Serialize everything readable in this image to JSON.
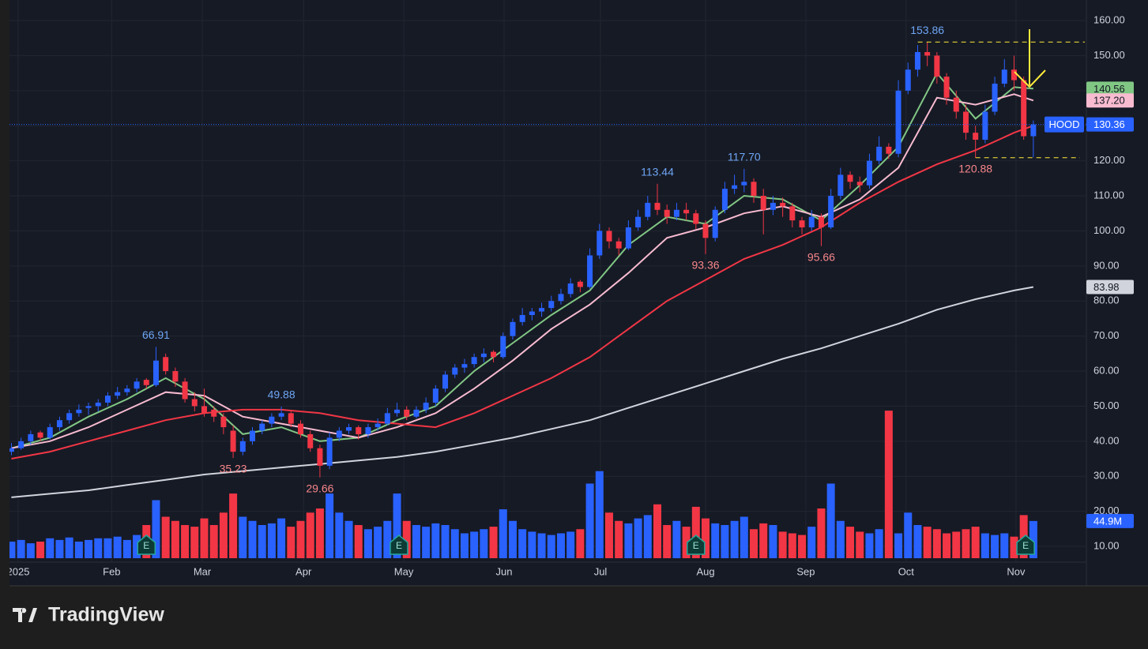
{
  "chart_data": {
    "type": "candlestick",
    "symbol": "HOOD",
    "xlim": [
      -0.2,
      111.5
    ],
    "xticks": [
      {
        "value": 0.7,
        "label": "2025"
      },
      {
        "value": 10.4,
        "label": "Feb"
      },
      {
        "value": 19.8,
        "label": "Mar"
      },
      {
        "value": 30.3,
        "label": "Apr"
      },
      {
        "value": 40.7,
        "label": "May"
      },
      {
        "value": 51.1,
        "label": "Jun"
      },
      {
        "value": 61.1,
        "label": "Jul"
      },
      {
        "value": 72,
        "label": "Aug"
      },
      {
        "value": 82.4,
        "label": "Sep"
      },
      {
        "value": 92.8,
        "label": "Oct"
      },
      {
        "value": 104.2,
        "label": "Nov"
      }
    ],
    "ylim": [
      5.5,
      165.86
    ],
    "yticks": [
      {
        "value": 10,
        "label": "10.00"
      },
      {
        "value": 20,
        "label": "20.00"
      },
      {
        "value": 30,
        "label": "30.00"
      },
      {
        "value": 40,
        "label": "40.00"
      },
      {
        "value": 50,
        "label": "50.00"
      },
      {
        "value": 60,
        "label": "60.00"
      },
      {
        "value": 70,
        "label": "70.00"
      },
      {
        "value": 80,
        "label": "80.00"
      },
      {
        "value": 90,
        "label": "90.00"
      },
      {
        "value": 100,
        "label": "100.00"
      },
      {
        "value": 110,
        "label": "110.00"
      },
      {
        "value": 120,
        "label": "120.00"
      },
      {
        "value": 130,
        "label": "130.00"
      },
      {
        "value": 140,
        "label": "140.00"
      },
      {
        "value": 150,
        "label": "150.00"
      },
      {
        "value": 160,
        "label": "160.00"
      }
    ],
    "grid": true,
    "up_color": "#2962ff",
    "down_color": "#f23645",
    "open": [
      37,
      38,
      40,
      42.5,
      41,
      44,
      46,
      48,
      49.5,
      50,
      51,
      53,
      54,
      55,
      57.5,
      56,
      64,
      60,
      57,
      52,
      50,
      49,
      47,
      43,
      37,
      40,
      43,
      45,
      47,
      48,
      45,
      42,
      38,
      33,
      41,
      43,
      44,
      42,
      44,
      45,
      48,
      49,
      47,
      49,
      51,
      55,
      59,
      61,
      62,
      64,
      65.5,
      64,
      70,
      74,
      76,
      77,
      78,
      80,
      82,
      85.5,
      84,
      93,
      100,
      97,
      95,
      101,
      104,
      108,
      106,
      104,
      106,
      105,
      102,
      98,
      106,
      112,
      113,
      114,
      110,
      106,
      108,
      107,
      103,
      101,
      104,
      101,
      110,
      116,
      114,
      113,
      120,
      124,
      122,
      140,
      146,
      151,
      150,
      144,
      138,
      134,
      128,
      126,
      134,
      142,
      146,
      143,
      127
    ],
    "high": [
      39.5,
      41,
      43,
      43,
      45,
      47,
      49,
      50.5,
      51,
      52,
      54,
      55.5,
      56,
      58,
      58,
      66.91,
      65,
      61,
      58,
      54,
      55,
      50,
      48,
      44.5,
      41,
      44,
      46,
      48,
      49.88,
      48.5,
      46,
      43,
      39,
      42.5,
      44,
      45,
      44.5,
      45,
      46.5,
      49.5,
      51,
      50,
      50,
      52.5,
      56,
      60,
      62,
      63.5,
      65,
      66.5,
      66,
      71,
      75,
      78,
      78,
      79.5,
      81.5,
      83.5,
      86.5,
      86,
      95,
      102,
      101,
      98,
      103,
      106,
      110,
      113.44,
      107.5,
      108,
      108,
      106,
      103,
      107,
      114,
      116,
      117.7,
      115,
      112,
      110,
      109.5,
      108,
      104,
      106,
      105,
      112,
      118,
      117,
      115.5,
      122,
      127,
      125,
      143,
      148,
      153,
      153.86,
      151,
      145,
      140,
      136,
      130,
      136,
      144,
      149,
      150,
      144,
      131.5
    ],
    "low": [
      36,
      37.5,
      39,
      40,
      40.5,
      43,
      45,
      47,
      47.5,
      48.5,
      50,
      52,
      53,
      54,
      55,
      55.5,
      59,
      55.5,
      51,
      48.5,
      47,
      45.5,
      42,
      35.23,
      36,
      39,
      42,
      44,
      46,
      44,
      41,
      37,
      29.66,
      32,
      40,
      42,
      40.5,
      41,
      43,
      44.5,
      47,
      46,
      46.5,
      48,
      50,
      54,
      58,
      59.5,
      61,
      62.5,
      62.5,
      63.5,
      69,
      73,
      74.5,
      75.5,
      77,
      79,
      81,
      82.5,
      83.5,
      92,
      95,
      93,
      94.5,
      100,
      103,
      104.5,
      102,
      103,
      103,
      100.5,
      93.36,
      97,
      105,
      110.5,
      111,
      108,
      99,
      104.5,
      104,
      101,
      99,
      100,
      95.66,
      100.5,
      109,
      112,
      111,
      112,
      119,
      120.5,
      121,
      139,
      144,
      147,
      142,
      136,
      132,
      126,
      120.88,
      125,
      133,
      141,
      140,
      126,
      121
    ],
    "close": [
      38,
      40,
      42,
      41,
      44,
      46,
      48,
      49,
      50,
      51,
      53,
      54,
      55,
      57,
      56,
      63,
      60,
      57,
      52,
      50,
      48,
      47,
      44,
      37,
      40,
      43,
      45,
      47,
      48,
      45,
      42,
      38,
      33,
      41,
      43,
      44,
      42,
      44,
      45,
      48,
      49,
      47,
      49,
      51,
      55,
      59,
      61,
      62,
      64,
      65,
      64,
      70,
      74,
      76,
      77,
      78,
      80,
      82,
      85,
      84,
      93,
      100,
      97,
      95,
      101,
      104,
      108,
      106,
      104,
      106,
      105,
      102,
      98,
      106,
      112,
      113,
      114,
      110,
      106,
      108,
      107,
      103,
      101,
      104,
      101,
      110,
      116,
      114,
      113,
      120,
      124,
      122,
      140,
      146,
      151,
      150,
      144,
      138,
      134,
      128,
      126,
      134,
      142,
      146,
      143,
      127,
      130.36
    ],
    "high_labels": {
      "x": [
        15,
        28,
        67,
        76,
        95
      ],
      "labels": [
        "66.91",
        "49.88",
        "113.44",
        "117.70",
        "153.86"
      ]
    },
    "low_labels": {
      "x": [
        23,
        32,
        72,
        84,
        100
      ],
      "labels": [
        "35.23",
        "29.66",
        "93.36",
        "95.66",
        "120.88"
      ]
    },
    "volume": {
      "values": [
        20,
        22,
        18,
        20,
        24,
        22,
        25,
        20,
        22,
        24,
        24,
        26,
        22,
        28,
        40,
        70,
        50,
        45,
        40,
        38,
        48,
        40,
        55,
        78,
        50,
        45,
        40,
        42,
        48,
        38,
        45,
        55,
        60,
        78,
        55,
        45,
        40,
        35,
        38,
        45,
        78,
        45,
        40,
        38,
        42,
        40,
        35,
        30,
        32,
        35,
        38,
        59,
        45,
        35,
        32,
        30,
        28,
        30,
        32,
        35,
        90,
        105,
        55,
        45,
        42,
        48,
        52,
        65,
        40,
        45,
        38,
        62,
        48,
        42,
        40,
        45,
        50,
        35,
        42,
        40,
        32,
        30,
        28,
        38,
        60,
        90,
        45,
        38,
        32,
        30,
        35,
        178,
        30,
        55,
        40,
        38,
        35,
        30,
        32,
        35,
        38,
        30,
        28,
        30,
        26,
        52,
        44.9
      ],
      "last_label": "44.9M"
    },
    "earnings": {
      "x": [
        14,
        40.2,
        71,
        105.2
      ],
      "label": "E"
    },
    "ma": [
      {
        "color": "#81c784",
        "x": [
          0,
          4,
          8,
          12,
          16,
          20,
          24,
          28,
          32,
          36,
          40,
          44,
          48,
          52,
          56,
          60,
          64,
          68,
          72,
          76,
          80,
          84,
          88,
          92,
          96,
          100,
          104,
          106
        ],
        "values": [
          38,
          41,
          47,
          52,
          58,
          52,
          42,
          44,
          40,
          41,
          46,
          50,
          60,
          68,
          76,
          83,
          96,
          104,
          102,
          110,
          109,
          103,
          113,
          124,
          145,
          132,
          141,
          140.56
        ],
        "tag": true
      },
      {
        "color": "#f8bbd0",
        "x": [
          0,
          4,
          8,
          12,
          16,
          20,
          24,
          28,
          32,
          36,
          40,
          44,
          48,
          52,
          56,
          60,
          64,
          68,
          72,
          76,
          80,
          84,
          88,
          92,
          96,
          100,
          104,
          106
        ],
        "values": [
          38,
          40,
          44,
          49,
          54,
          53,
          47,
          45,
          43,
          41,
          44,
          48,
          55,
          63,
          72,
          79,
          88,
          98,
          101,
          105,
          107,
          104,
          109,
          118,
          138,
          136,
          139,
          137.2
        ],
        "last_label": "137.20",
        "tag": true
      },
      {
        "color": "#f23645",
        "x": [
          0,
          4,
          8,
          12,
          16,
          20,
          24,
          28,
          32,
          36,
          40,
          44,
          48,
          52,
          56,
          60,
          64,
          68,
          72,
          76,
          80,
          84,
          88,
          92,
          96,
          100,
          104,
          106
        ],
        "values": [
          35,
          37,
          40,
          43,
          46,
          48,
          49,
          49,
          48,
          46,
          45,
          44,
          48,
          53,
          58,
          64,
          72,
          80,
          86,
          92,
          96,
          101,
          108,
          114,
          119,
          123,
          128,
          130
        ],
        "tag": false
      },
      {
        "color": "#d1d4dc",
        "x": [
          0,
          4,
          8,
          12,
          16,
          20,
          24,
          28,
          32,
          36,
          40,
          44,
          48,
          52,
          56,
          60,
          64,
          68,
          72,
          76,
          80,
          84,
          88,
          92,
          96,
          100,
          104,
          106
        ],
        "values": [
          24,
          25,
          26,
          27.5,
          29,
          30.5,
          31.5,
          32.5,
          33.5,
          34.5,
          35.5,
          37,
          39,
          41,
          43.5,
          46,
          49.5,
          53,
          56.5,
          60,
          63.5,
          66.5,
          70,
          73.5,
          77.5,
          80.5,
          83,
          83.98
        ],
        "tag": true
      }
    ]
  },
  "brand": "TradingView"
}
